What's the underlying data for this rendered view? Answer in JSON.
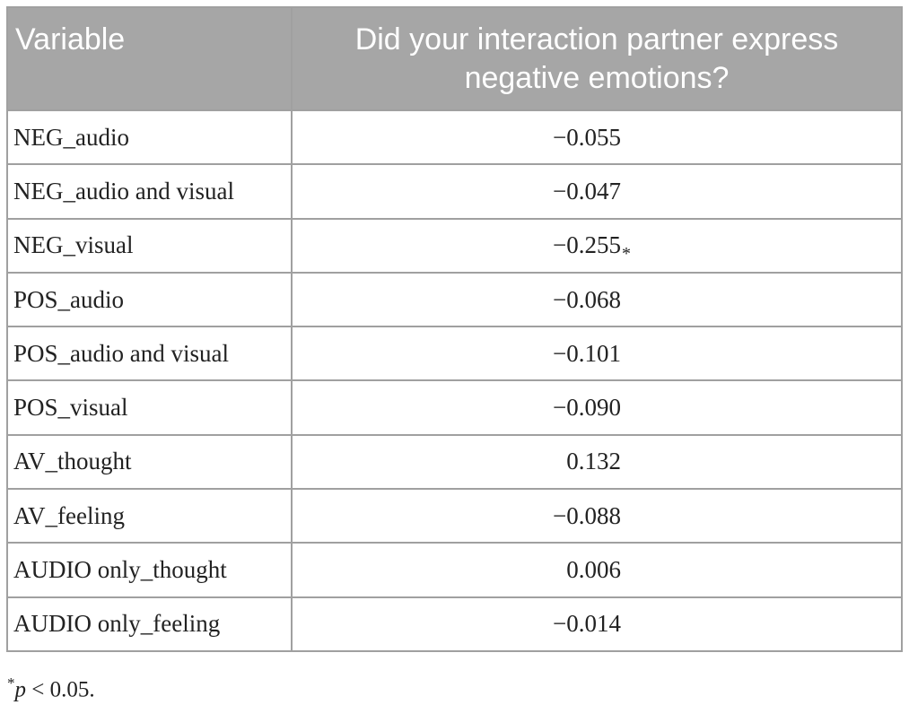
{
  "table": {
    "header": [
      "Variable",
      "Did your interaction partner express negative emotions?"
    ],
    "rows": [
      {
        "variable": "NEG_audio",
        "value": "−0.055"
      },
      {
        "variable": "NEG_audio and visual",
        "value": "−0.047"
      },
      {
        "variable": "NEG_visual",
        "value": "−0.255",
        "mark": "*"
      },
      {
        "variable": "POS_audio",
        "value": "−0.068"
      },
      {
        "variable": "POS_audio and visual",
        "value": "−0.101"
      },
      {
        "variable": "POS_visual",
        "value": "−0.090"
      },
      {
        "variable": "AV_thought",
        "value": "0.132"
      },
      {
        "variable": "AV_feeling",
        "value": "−0.088"
      },
      {
        "variable": "AUDIO only_thought",
        "value": "0.006"
      },
      {
        "variable": "AUDIO only_feeling",
        "value": "−0.014"
      }
    ]
  },
  "footnote": {
    "mark": "*",
    "symbol": "p",
    "text": "< 0.05."
  }
}
